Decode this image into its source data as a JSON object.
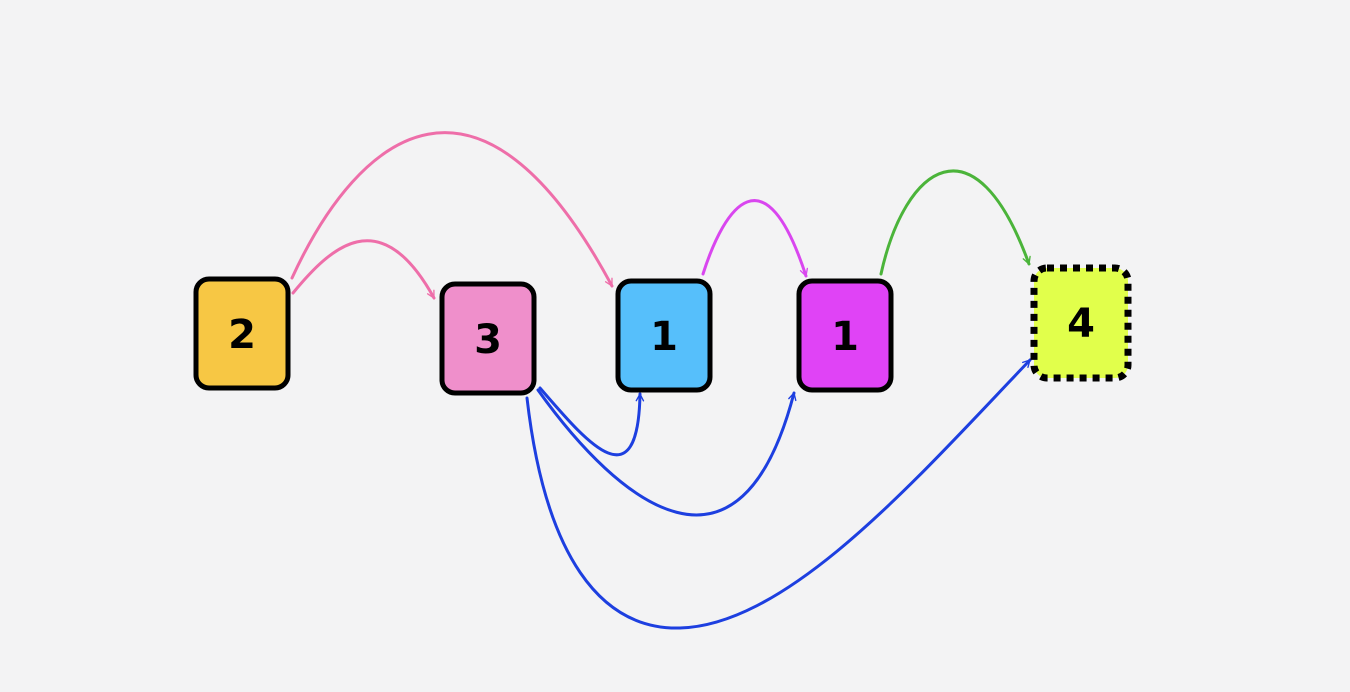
{
  "nodes": [
    {
      "id": "a",
      "label": "2",
      "color": "#f7c744",
      "border": "solid"
    },
    {
      "id": "b",
      "label": "3",
      "color": "#ef8fcb",
      "border": "solid"
    },
    {
      "id": "c",
      "label": "1",
      "color": "#56bffb",
      "border": "solid"
    },
    {
      "id": "d",
      "label": "1",
      "color": "#e043f6",
      "border": "solid"
    },
    {
      "id": "e",
      "label": "4",
      "color": "#e1ff4b",
      "border": "dotted"
    }
  ],
  "edges": [
    {
      "from": "a",
      "to": "b",
      "color": "#ee6ea9"
    },
    {
      "from": "a",
      "to": "c",
      "color": "#ee6ea9"
    },
    {
      "from": "c",
      "to": "d",
      "color": "#d946ef"
    },
    {
      "from": "d",
      "to": "e",
      "color": "#4bb43a"
    },
    {
      "from": "b",
      "to": "c",
      "color": "#1d3fe0"
    },
    {
      "from": "b",
      "to": "d",
      "color": "#1d3fe0"
    },
    {
      "from": "b",
      "to": "e",
      "color": "#1d3fe0"
    }
  ]
}
